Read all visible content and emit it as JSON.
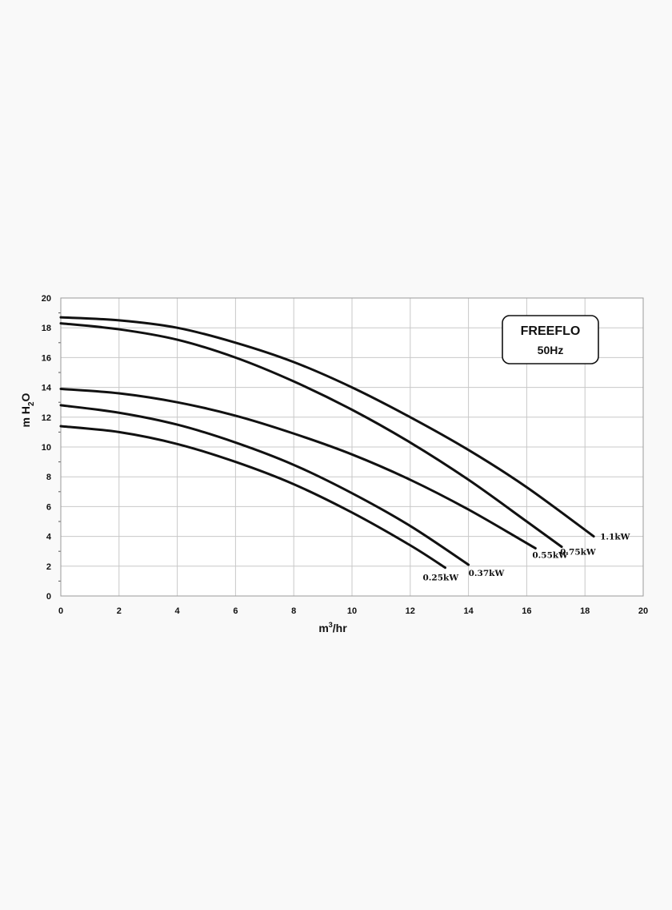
{
  "chart_data": {
    "type": "line",
    "title": "FREEFLO",
    "subtitle": "50Hz",
    "xlabel": "m3/hr",
    "ylabel": "m H2O",
    "xlim": [
      0,
      20
    ],
    "ylim": [
      0,
      20
    ],
    "x_ticks": [
      0,
      2,
      4,
      6,
      8,
      10,
      12,
      14,
      16,
      18,
      20
    ],
    "y_ticks": [
      0,
      2,
      4,
      6,
      8,
      10,
      12,
      14,
      16,
      18,
      20
    ],
    "grid": true,
    "legend_position": "top-right",
    "series": [
      {
        "name": "1.1kW",
        "x": [
          0,
          2,
          4,
          6,
          8,
          10,
          12,
          14,
          16,
          18.3
        ],
        "y": [
          18.7,
          18.5,
          18.0,
          17.0,
          15.7,
          14.0,
          12.0,
          9.8,
          7.3,
          4.0
        ]
      },
      {
        "name": "0.75kW",
        "x": [
          0,
          2,
          4,
          6,
          8,
          10,
          12,
          14,
          16,
          17.2
        ],
        "y": [
          18.3,
          17.9,
          17.2,
          16.0,
          14.4,
          12.5,
          10.3,
          7.8,
          5.0,
          3.3
        ]
      },
      {
        "name": "0.55kW",
        "x": [
          0,
          2,
          4,
          6,
          8,
          10,
          12,
          14,
          16.3
        ],
        "y": [
          13.9,
          13.6,
          13.0,
          12.1,
          10.9,
          9.5,
          7.8,
          5.8,
          3.2
        ]
      },
      {
        "name": "0.37kW",
        "x": [
          0,
          2,
          4,
          6,
          8,
          10,
          12,
          14
        ],
        "y": [
          12.8,
          12.3,
          11.5,
          10.3,
          8.8,
          6.9,
          4.7,
          2.1
        ]
      },
      {
        "name": "0.25kW",
        "x": [
          0,
          2,
          4,
          6,
          8,
          10,
          12,
          13.2
        ],
        "y": [
          11.4,
          11.0,
          10.2,
          9.0,
          7.5,
          5.6,
          3.4,
          1.9
        ]
      }
    ]
  },
  "axis_text": {
    "xlabel_main": "m",
    "xlabel_sup": "3",
    "xlabel_tail": "/hr",
    "ylabel_main": "m H",
    "ylabel_sub": "2",
    "ylabel_tail": "O"
  }
}
